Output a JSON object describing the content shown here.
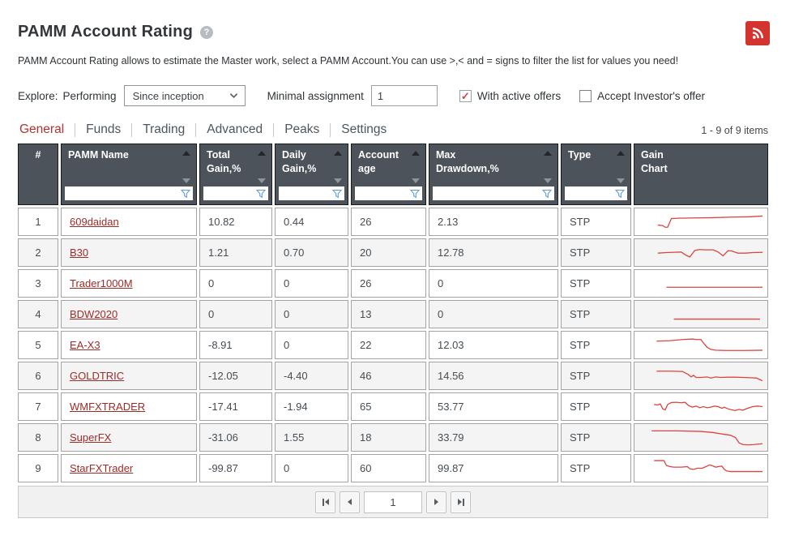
{
  "header": {
    "title": "PAMM Account Rating",
    "help_icon": "?",
    "description": "PAMM Account Rating allows to estimate the Master work, select a PAMM Account.You can use >,< and = signs to filter the list for values you need!"
  },
  "filters": {
    "explore_label": "Explore:",
    "performing_label": "Performing",
    "period_select_value": "Since inception",
    "minimal_assignment_label": "Minimal assignment",
    "minimal_assignment_value": "1",
    "with_active_offers_label": "With active offers",
    "with_active_offers_checked": true,
    "accept_investors_offer_label": "Accept Investor's offer",
    "accept_investors_offer_checked": false
  },
  "tabs": [
    {
      "label": "General",
      "active": true
    },
    {
      "label": "Funds",
      "active": false
    },
    {
      "label": "Trading",
      "active": false
    },
    {
      "label": "Advanced",
      "active": false
    },
    {
      "label": "Peaks",
      "active": false
    },
    {
      "label": "Settings",
      "active": false
    }
  ],
  "items_count": "1 - 9 of 9 items",
  "table": {
    "columns": [
      {
        "label": "#",
        "sortable": false,
        "filterable": false
      },
      {
        "label": "PAMM Name",
        "sortable": true,
        "filterable": true
      },
      {
        "label": [
          "Total",
          "Gain,%"
        ],
        "sortable": true,
        "filterable": true
      },
      {
        "label": [
          "Daily",
          "Gain,%"
        ],
        "sortable": true,
        "filterable": true
      },
      {
        "label": [
          "Account",
          "age"
        ],
        "sortable": true,
        "filterable": true
      },
      {
        "label": [
          "Max",
          "Drawdown,%"
        ],
        "sortable": true,
        "filterable": true
      },
      {
        "label": "Type",
        "sortable": true,
        "filterable": true
      },
      {
        "label": [
          "Gain",
          "Chart"
        ],
        "sortable": false,
        "filterable": false
      }
    ],
    "rows": [
      {
        "num": "1",
        "name": "609daidan",
        "total_gain": "10.82",
        "daily_gain": "0.44",
        "account_age": "26",
        "max_drawdown": "2.13",
        "type": "STP"
      },
      {
        "num": "2",
        "name": "B30",
        "total_gain": "1.21",
        "daily_gain": "0.70",
        "account_age": "20",
        "max_drawdown": "12.78",
        "type": "STP"
      },
      {
        "num": "3",
        "name": "Trader1000M",
        "total_gain": "0",
        "daily_gain": "0",
        "account_age": "26",
        "max_drawdown": "0",
        "type": "STP"
      },
      {
        "num": "4",
        "name": "BDW2020",
        "total_gain": "0",
        "daily_gain": "0",
        "account_age": "13",
        "max_drawdown": "0",
        "type": "STP"
      },
      {
        "num": "5",
        "name": "EA-X3",
        "total_gain": "-8.91",
        "daily_gain": "0",
        "account_age": "22",
        "max_drawdown": "12.03",
        "type": "STP"
      },
      {
        "num": "6",
        "name": "GOLDTRIC",
        "total_gain": "-12.05",
        "daily_gain": "-4.40",
        "account_age": "46",
        "max_drawdown": "14.56",
        "type": "STP"
      },
      {
        "num": "7",
        "name": "WMFXTRADER",
        "total_gain": "-17.41",
        "daily_gain": "-1.94",
        "account_age": "65",
        "max_drawdown": "53.77",
        "type": "STP"
      },
      {
        "num": "8",
        "name": "SuperFX",
        "total_gain": "-31.06",
        "daily_gain": "1.55",
        "account_age": "18",
        "max_drawdown": "33.79",
        "type": "STP"
      },
      {
        "num": "9",
        "name": "StarFXTrader",
        "total_gain": "-99.87",
        "daily_gain": "0",
        "account_age": "60",
        "max_drawdown": "99.87",
        "type": "STP"
      }
    ]
  },
  "pagination": {
    "current_page": "1"
  },
  "colors": {
    "accent_red": "#b13331",
    "link_red": "#9d2b27",
    "rss_red": "#d3342e",
    "header_bg": "#4c535a",
    "sparkline": "#da4540",
    "funnel_blue": "#5e9cd3",
    "check_red": "#cf4641",
    "alt_row_bg": "#f4f4f4"
  },
  "chart_data": {
    "type": "line",
    "title": "Gain Chart sparklines (red line per PAMM account, x = time, y = relative gain, higher = better)",
    "series": [
      {
        "name": "609daidan",
        "points": [
          [
            15,
            26
          ],
          [
            19,
            27
          ],
          [
            21,
            30
          ],
          [
            23,
            30
          ],
          [
            26,
            14
          ],
          [
            32,
            13.5
          ],
          [
            45,
            13
          ],
          [
            60,
            12.5
          ],
          [
            75,
            11.5
          ],
          [
            88,
            11
          ],
          [
            100,
            9.5
          ]
        ]
      },
      {
        "name": "B30",
        "points": [
          [
            15,
            21
          ],
          [
            22,
            20
          ],
          [
            28,
            19.5
          ],
          [
            34,
            19
          ],
          [
            38,
            25
          ],
          [
            41,
            28
          ],
          [
            45,
            16
          ],
          [
            49,
            14.5
          ],
          [
            54,
            15
          ],
          [
            60,
            15
          ],
          [
            64,
            19
          ],
          [
            68,
            26
          ],
          [
            72,
            16.5
          ],
          [
            75,
            17
          ],
          [
            80,
            21
          ],
          [
            86,
            21
          ],
          [
            92,
            20
          ],
          [
            100,
            19.5
          ]
        ]
      },
      {
        "name": "Trader1000M",
        "points": [
          [
            22,
            27
          ],
          [
            100,
            27
          ]
        ]
      },
      {
        "name": "BDW2020",
        "points": [
          [
            28,
            29
          ],
          [
            98,
            29
          ]
        ]
      },
      {
        "name": "EA-X3",
        "points": [
          [
            14,
            13
          ],
          [
            25,
            12
          ],
          [
            35,
            10
          ],
          [
            43,
            9
          ],
          [
            46,
            10
          ],
          [
            50,
            10
          ],
          [
            52,
            16
          ],
          [
            55,
            24
          ],
          [
            58,
            28
          ],
          [
            62,
            29.5
          ],
          [
            70,
            30
          ],
          [
            85,
            30
          ],
          [
            100,
            29.5
          ]
        ]
      },
      {
        "name": "GOLDTRIC",
        "points": [
          [
            14,
            11.5
          ],
          [
            25,
            11.5
          ],
          [
            35,
            12
          ],
          [
            40,
            18
          ],
          [
            42,
            22
          ],
          [
            44,
            19
          ],
          [
            46,
            23
          ],
          [
            50,
            23
          ],
          [
            55,
            22
          ],
          [
            58,
            24
          ],
          [
            62,
            22
          ],
          [
            66,
            23
          ],
          [
            72,
            22.5
          ],
          [
            78,
            22.5
          ],
          [
            84,
            23
          ],
          [
            90,
            23.5
          ],
          [
            95,
            24
          ],
          [
            98,
            27
          ],
          [
            100,
            29
          ]
        ]
      },
      {
        "name": "WMFXTRADER",
        "points": [
          [
            12,
            16
          ],
          [
            15,
            17
          ],
          [
            17,
            15
          ],
          [
            19,
            24
          ],
          [
            21,
            26
          ],
          [
            23,
            16
          ],
          [
            26,
            12.5
          ],
          [
            30,
            12
          ],
          [
            34,
            13
          ],
          [
            37,
            12
          ],
          [
            40,
            18
          ],
          [
            43,
            21
          ],
          [
            46,
            19
          ],
          [
            49,
            22
          ],
          [
            52,
            20
          ],
          [
            55,
            22
          ],
          [
            58,
            21
          ],
          [
            61,
            19
          ],
          [
            64,
            20
          ],
          [
            67,
            23
          ],
          [
            69,
            21
          ],
          [
            72,
            24
          ],
          [
            75,
            26
          ],
          [
            78,
            27
          ],
          [
            81,
            25
          ],
          [
            84,
            26.5
          ],
          [
            88,
            23
          ],
          [
            92,
            20
          ],
          [
            96,
            19
          ],
          [
            100,
            20
          ]
        ]
      },
      {
        "name": "SuperFX",
        "points": [
          [
            10,
            8
          ],
          [
            30,
            8
          ],
          [
            50,
            9
          ],
          [
            60,
            11
          ],
          [
            68,
            14
          ],
          [
            74,
            16
          ],
          [
            78,
            20
          ],
          [
            81,
            30
          ],
          [
            84,
            33
          ],
          [
            88,
            33.5
          ],
          [
            93,
            33
          ],
          [
            100,
            31.5
          ]
        ]
      },
      {
        "name": "StarFXTrader",
        "points": [
          [
            12,
            6
          ],
          [
            20,
            6
          ],
          [
            22,
            15
          ],
          [
            25,
            17
          ],
          [
            28,
            18
          ],
          [
            34,
            18
          ],
          [
            39,
            17
          ],
          [
            41,
            21
          ],
          [
            44,
            22
          ],
          [
            47,
            20
          ],
          [
            51,
            20
          ],
          [
            54,
            17
          ],
          [
            57,
            14
          ],
          [
            59,
            15
          ],
          [
            62,
            18
          ],
          [
            64,
            17
          ],
          [
            67,
            16
          ],
          [
            69,
            22
          ],
          [
            71,
            25
          ],
          [
            74,
            26
          ],
          [
            80,
            26
          ],
          [
            90,
            26
          ],
          [
            100,
            26
          ]
        ]
      }
    ]
  }
}
